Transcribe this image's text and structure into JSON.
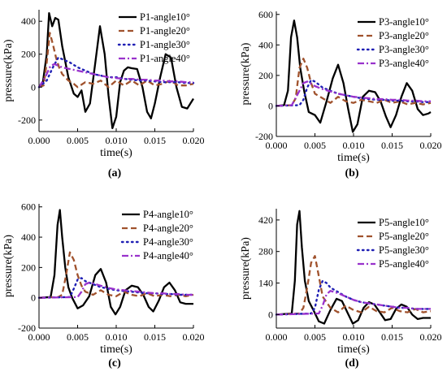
{
  "colors": {
    "angle10": "#000000",
    "angle20": "#a0522d",
    "angle30": "#1f1fb4",
    "angle40": "#9932cc"
  },
  "chart_data": [
    {
      "type": "line",
      "panel_label": "(a)",
      "xlabel": "time(s)",
      "ylabel": "pressure(kPa)",
      "xlim": [
        0.0,
        0.02
      ],
      "ylim": [
        -270,
        470
      ],
      "xticks": [
        0.0,
        0.005,
        0.01,
        0.015,
        0.02
      ],
      "xtick_labels": [
        "0.000",
        "0.005",
        "0.010",
        "0.015",
        "0.020"
      ],
      "yticks": [
        -200,
        0,
        200,
        400
      ],
      "ytick_labels": [
        "-200",
        "0",
        "200",
        "400"
      ],
      "legend_position": "top-right",
      "series": [
        {
          "name": "P1-angle10°",
          "style": "solid",
          "color_key": "angle10",
          "x": [
            0,
            0.0005,
            0.001,
            0.0013,
            0.0017,
            0.0021,
            0.0025,
            0.003,
            0.0038,
            0.0045,
            0.005,
            0.0055,
            0.006,
            0.0066,
            0.0073,
            0.0079,
            0.0085,
            0.009,
            0.0095,
            0.01,
            0.0105,
            0.011,
            0.0115,
            0.012,
            0.0127,
            0.0134,
            0.014,
            0.0145,
            0.015,
            0.0157,
            0.0164,
            0.0171,
            0.0178,
            0.0185,
            0.0192,
            0.02
          ],
          "y": [
            0,
            30,
            200,
            450,
            370,
            420,
            410,
            250,
            60,
            -40,
            -60,
            -20,
            -150,
            -100,
            150,
            370,
            200,
            -50,
            -250,
            -180,
            30,
            100,
            120,
            115,
            110,
            0,
            -150,
            -190,
            -100,
            60,
            200,
            180,
            0,
            -120,
            -130,
            -70
          ]
        },
        {
          "name": "P1-angle20°",
          "style": "dashed",
          "color_key": "angle20",
          "x": [
            0,
            0.0006,
            0.001,
            0.0014,
            0.0018,
            0.0022,
            0.0026,
            0.003,
            0.0038,
            0.0045,
            0.005,
            0.006,
            0.007,
            0.008,
            0.009,
            0.01,
            0.011,
            0.012,
            0.013,
            0.014,
            0.015,
            0.016,
            0.017,
            0.018,
            0.019,
            0.02
          ],
          "y": [
            0,
            10,
            150,
            330,
            260,
            180,
            120,
            80,
            40,
            20,
            0,
            30,
            20,
            40,
            0,
            40,
            10,
            40,
            10,
            40,
            10,
            20,
            40,
            10,
            10,
            20
          ]
        },
        {
          "name": "P1-angle30°",
          "style": "dotted",
          "color_key": "angle30",
          "x": [
            0,
            0.001,
            0.0018,
            0.0025,
            0.003,
            0.004,
            0.005,
            0.006,
            0.007,
            0.008,
            0.009,
            0.01,
            0.011,
            0.012,
            0.013,
            0.014,
            0.015,
            0.016,
            0.017,
            0.018,
            0.019,
            0.02
          ],
          "y": [
            0,
            40,
            120,
            180,
            170,
            150,
            120,
            100,
            80,
            70,
            60,
            60,
            50,
            45,
            40,
            40,
            35,
            30,
            30,
            30,
            25,
            25
          ]
        },
        {
          "name": "P1-angle40°",
          "style": "dashdot",
          "color_key": "angle40",
          "x": [
            0,
            0.0008,
            0.0015,
            0.002,
            0.003,
            0.004,
            0.005,
            0.006,
            0.007,
            0.008,
            0.009,
            0.01,
            0.011,
            0.012,
            0.013,
            0.014,
            0.015,
            0.016,
            0.017,
            0.018,
            0.019,
            0.02
          ],
          "y": [
            0,
            60,
            130,
            140,
            120,
            110,
            100,
            90,
            80,
            70,
            60,
            55,
            50,
            50,
            45,
            45,
            40,
            40,
            35,
            35,
            30,
            30
          ]
        }
      ]
    },
    {
      "type": "line",
      "panel_label": "(b)",
      "xlabel": "time(s)",
      "ylabel": "pressure(kPa)",
      "xlim": [
        0.0,
        0.02
      ],
      "ylim": [
        -200,
        620
      ],
      "xticks": [
        0.0,
        0.005,
        0.01,
        0.015,
        0.02
      ],
      "xtick_labels": [
        "0.000",
        "0.005",
        "0.010",
        "0.015",
        "0.020"
      ],
      "yticks": [
        -200,
        0,
        200,
        400,
        600
      ],
      "ytick_labels": [
        "-200",
        "0",
        "200",
        "400",
        "600"
      ],
      "legend_position": "top-right",
      "series": [
        {
          "name": "P3-angle10°",
          "style": "solid",
          "color_key": "angle10",
          "x": [
            0,
            0.001,
            0.0015,
            0.0019,
            0.0023,
            0.0027,
            0.0031,
            0.0036,
            0.0042,
            0.005,
            0.0057,
            0.0065,
            0.0073,
            0.008,
            0.0087,
            0.0093,
            0.0099,
            0.0105,
            0.0112,
            0.012,
            0.0128,
            0.0135,
            0.0142,
            0.0148,
            0.0155,
            0.0162,
            0.0169,
            0.0176,
            0.0183,
            0.019,
            0.0197,
            0.02
          ],
          "y": [
            0,
            5,
            100,
            450,
            560,
            450,
            250,
            100,
            -40,
            -60,
            -110,
            30,
            180,
            270,
            150,
            -20,
            -170,
            -120,
            60,
            100,
            90,
            30,
            -70,
            -140,
            -60,
            60,
            150,
            100,
            -20,
            -60,
            -50,
            -40
          ]
        },
        {
          "name": "P3-angle20°",
          "style": "dashed",
          "color_key": "angle20",
          "x": [
            0,
            0.002,
            0.0025,
            0.003,
            0.0035,
            0.004,
            0.0045,
            0.005,
            0.006,
            0.007,
            0.008,
            0.009,
            0.01,
            0.011,
            0.012,
            0.013,
            0.014,
            0.015,
            0.016,
            0.017,
            0.018,
            0.019,
            0.02
          ],
          "y": [
            0,
            5,
            50,
            250,
            310,
            250,
            150,
            80,
            50,
            20,
            60,
            30,
            20,
            40,
            30,
            20,
            40,
            20,
            30,
            10,
            20,
            10,
            20
          ]
        },
        {
          "name": "P3-angle30°",
          "style": "dotted",
          "color_key": "angle30",
          "x": [
            0,
            0.003,
            0.0035,
            0.004,
            0.0045,
            0.005,
            0.006,
            0.007,
            0.008,
            0.009,
            0.01,
            0.011,
            0.012,
            0.013,
            0.014,
            0.015,
            0.016,
            0.017,
            0.018,
            0.019,
            0.02
          ],
          "y": [
            0,
            5,
            40,
            120,
            170,
            160,
            120,
            100,
            80,
            70,
            60,
            50,
            45,
            40,
            40,
            35,
            35,
            30,
            30,
            25,
            25
          ]
        },
        {
          "name": "P3-angle40°",
          "style": "dashdot",
          "color_key": "angle40",
          "x": [
            0,
            0.002,
            0.003,
            0.0035,
            0.004,
            0.005,
            0.006,
            0.007,
            0.008,
            0.009,
            0.01,
            0.011,
            0.012,
            0.013,
            0.014,
            0.015,
            0.016,
            0.017,
            0.018,
            0.019,
            0.02
          ],
          "y": [
            0,
            5,
            100,
            150,
            160,
            130,
            110,
            95,
            80,
            70,
            60,
            55,
            50,
            45,
            45,
            40,
            40,
            35,
            35,
            30,
            30
          ]
        }
      ]
    },
    {
      "type": "line",
      "panel_label": "(c)",
      "xlabel": "time(s)",
      "ylabel": "pressure(kPa)",
      "xlim": [
        0.0,
        0.02
      ],
      "ylim": [
        -200,
        620
      ],
      "xticks": [
        0.0,
        0.005,
        0.01,
        0.015,
        0.02
      ],
      "xtick_labels": [
        "0.000",
        "0.005",
        "0.010",
        "0.015",
        "0.020"
      ],
      "yticks": [
        -200,
        0,
        200,
        400,
        600
      ],
      "ytick_labels": [
        "-200",
        "0",
        "200",
        "400",
        "600"
      ],
      "legend_position": "top-right",
      "series": [
        {
          "name": "P4-angle10°",
          "style": "solid",
          "color_key": "angle10",
          "x": [
            0,
            0.0015,
            0.002,
            0.0024,
            0.0027,
            0.003,
            0.0034,
            0.0038,
            0.0043,
            0.005,
            0.0057,
            0.0065,
            0.0073,
            0.008,
            0.0087,
            0.0093,
            0.0099,
            0.0105,
            0.0112,
            0.012,
            0.0128,
            0.0135,
            0.0142,
            0.0148,
            0.0155,
            0.0162,
            0.0169,
            0.0176,
            0.0183,
            0.019,
            0.0197,
            0.02
          ],
          "y": [
            0,
            5,
            150,
            480,
            580,
            400,
            200,
            70,
            0,
            -70,
            -50,
            10,
            150,
            190,
            100,
            -60,
            -110,
            -60,
            50,
            80,
            70,
            20,
            -60,
            -90,
            -20,
            70,
            100,
            50,
            -30,
            -40,
            -40,
            -40
          ]
        },
        {
          "name": "P4-angle20°",
          "style": "dashed",
          "color_key": "angle20",
          "x": [
            0,
            0.0025,
            0.003,
            0.0035,
            0.004,
            0.0045,
            0.005,
            0.0055,
            0.006,
            0.007,
            0.008,
            0.009,
            0.01,
            0.011,
            0.012,
            0.013,
            0.014,
            0.015,
            0.016,
            0.017,
            0.018,
            0.019,
            0.02
          ],
          "y": [
            0,
            5,
            20,
            150,
            300,
            250,
            150,
            80,
            40,
            20,
            50,
            20,
            10,
            40,
            20,
            10,
            30,
            10,
            20,
            10,
            20,
            10,
            20
          ]
        },
        {
          "name": "P4-angle30°",
          "style": "dotted",
          "color_key": "angle30",
          "x": [
            0,
            0.004,
            0.0045,
            0.005,
            0.0055,
            0.006,
            0.007,
            0.008,
            0.009,
            0.01,
            0.011,
            0.012,
            0.013,
            0.014,
            0.015,
            0.016,
            0.017,
            0.018,
            0.019,
            0.02
          ],
          "y": [
            0,
            5,
            60,
            120,
            130,
            110,
            90,
            70,
            60,
            50,
            45,
            40,
            35,
            30,
            30,
            25,
            25,
            20,
            20,
            20
          ]
        },
        {
          "name": "P4-angle40°",
          "style": "dashdot",
          "color_key": "angle40",
          "x": [
            0,
            0.005,
            0.0055,
            0.006,
            0.0065,
            0.007,
            0.008,
            0.009,
            0.01,
            0.011,
            0.012,
            0.013,
            0.014,
            0.015,
            0.016,
            0.017,
            0.018,
            0.019,
            0.02
          ],
          "y": [
            0,
            5,
            40,
            90,
            100,
            95,
            80,
            65,
            55,
            50,
            45,
            40,
            35,
            30,
            30,
            25,
            25,
            20,
            20
          ]
        }
      ]
    },
    {
      "type": "line",
      "panel_label": "(d)",
      "xlabel": "time(s)",
      "ylabel": "pressure(kPa)",
      "xlim": [
        0.0,
        0.02
      ],
      "ylim": [
        -60,
        470
      ],
      "xticks": [
        0.0,
        0.005,
        0.01,
        0.015,
        0.02
      ],
      "xtick_labels": [
        "0.000",
        "0.005",
        "0.010",
        "0.015",
        "0.020"
      ],
      "yticks": [
        0,
        140,
        280,
        420
      ],
      "ytick_labels": [
        "0",
        "140",
        "280",
        "420"
      ],
      "legend_position": "top-right",
      "series": [
        {
          "name": "P5-angle10°",
          "style": "solid",
          "color_key": "angle10",
          "x": [
            0,
            0.002,
            0.0024,
            0.0027,
            0.003,
            0.0033,
            0.0037,
            0.0042,
            0.0048,
            0.0055,
            0.0062,
            0.007,
            0.0078,
            0.0085,
            0.0092,
            0.0099,
            0.0106,
            0.0113,
            0.012,
            0.0127,
            0.0134,
            0.0141,
            0.0148,
            0.0155,
            0.0162,
            0.0169,
            0.0176,
            0.0183,
            0.019,
            0.0197,
            0.02
          ],
          "y": [
            0,
            5,
            150,
            400,
            460,
            300,
            150,
            60,
            20,
            -30,
            -40,
            20,
            70,
            60,
            10,
            -40,
            -25,
            30,
            55,
            45,
            10,
            -25,
            -20,
            25,
            45,
            35,
            0,
            -20,
            -15,
            -15,
            -15
          ]
        },
        {
          "name": "P5-angle20°",
          "style": "dashed",
          "color_key": "angle20",
          "x": [
            0,
            0.003,
            0.0035,
            0.004,
            0.0045,
            0.005,
            0.0055,
            0.006,
            0.007,
            0.008,
            0.009,
            0.01,
            0.011,
            0.012,
            0.013,
            0.014,
            0.015,
            0.016,
            0.017,
            0.018,
            0.019,
            0.02
          ],
          "y": [
            0,
            5,
            30,
            120,
            230,
            260,
            170,
            80,
            30,
            10,
            40,
            20,
            10,
            35,
            15,
            10,
            30,
            15,
            10,
            25,
            10,
            15
          ]
        },
        {
          "name": "P5-angle30°",
          "style": "dotted",
          "color_key": "angle30",
          "x": [
            0,
            0.0045,
            0.005,
            0.0055,
            0.006,
            0.0065,
            0.007,
            0.008,
            0.009,
            0.01,
            0.011,
            0.012,
            0.013,
            0.014,
            0.015,
            0.016,
            0.017,
            0.018,
            0.019,
            0.02
          ],
          "y": [
            0,
            5,
            30,
            110,
            150,
            140,
            120,
            100,
            80,
            65,
            55,
            50,
            45,
            40,
            35,
            30,
            30,
            25,
            25,
            25
          ]
        },
        {
          "name": "P5-angle40°",
          "style": "dashdot",
          "color_key": "angle40",
          "x": [
            0,
            0.0055,
            0.006,
            0.0065,
            0.007,
            0.0075,
            0.008,
            0.009,
            0.01,
            0.011,
            0.012,
            0.013,
            0.014,
            0.015,
            0.016,
            0.017,
            0.018,
            0.019,
            0.02
          ],
          "y": [
            0,
            5,
            40,
            90,
            105,
            100,
            95,
            80,
            65,
            55,
            50,
            45,
            40,
            35,
            30,
            30,
            25,
            25,
            25
          ]
        }
      ]
    }
  ]
}
